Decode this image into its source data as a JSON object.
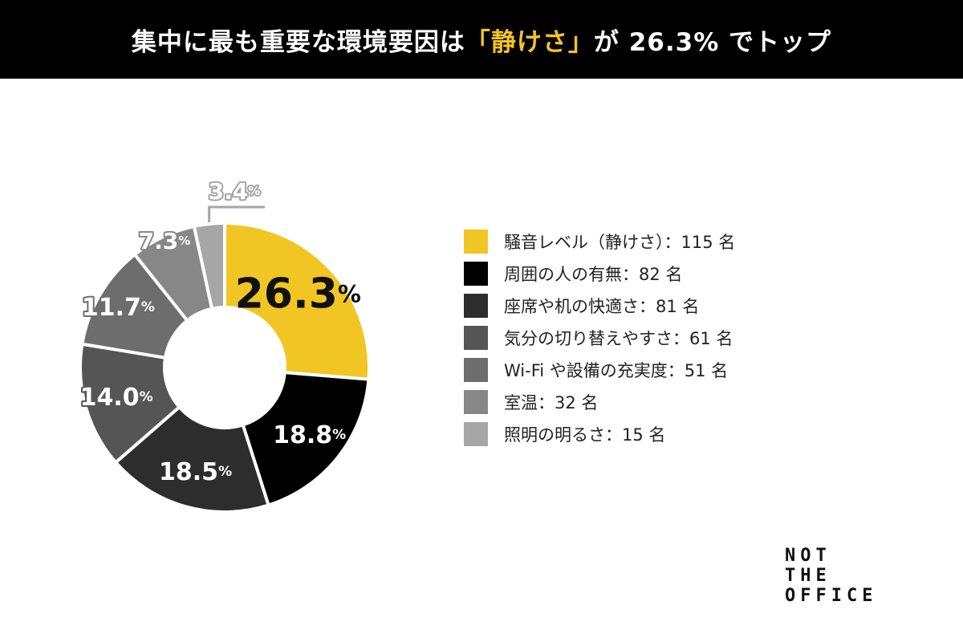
{
  "header": {
    "title_pre": "集中に最も重要な環境要因は",
    "title_highlight": "「静けさ」",
    "title_post": "が 26.3% でトップ"
  },
  "colors": {
    "accent": "#f3c623",
    "header_bg": "#000000"
  },
  "chart_data": {
    "type": "pie",
    "variant": "donut",
    "categories": [
      "騒音レベル（静けさ）",
      "周囲の人の有無",
      "座席や机の快適さ",
      "気分の切り替えやすさ",
      "Wi-Fi や設備の充実度",
      "室温",
      "照明の明るさ"
    ],
    "counts": [
      115,
      82,
      81,
      61,
      51,
      32,
      15
    ],
    "values": [
      26.3,
      18.8,
      18.5,
      14.0,
      11.7,
      7.3,
      3.4
    ],
    "value_labels": [
      "26.3",
      "18.8",
      "18.5",
      "14.0",
      "11.7",
      "7.3",
      "3.4"
    ],
    "unit": "%",
    "colors": [
      "#f1c624",
      "#000000",
      "#2d2d2d",
      "#555555",
      "#6d6d6d",
      "#878787",
      "#a6a6a6"
    ],
    "legend_entries": [
      "騒音レベル（静けさ）：115 名",
      "周囲の人の有無：82 名",
      "座席や机の快適さ：81 名",
      "気分の切り替えやすさ：61 名",
      "Wi-Fi や設備の充実度：51 名",
      "室温：32 名",
      "照明の明るさ：15 名"
    ],
    "legend_position": "right"
  },
  "logo": {
    "lines": [
      "NOT",
      "THE",
      "OFFICE"
    ]
  }
}
